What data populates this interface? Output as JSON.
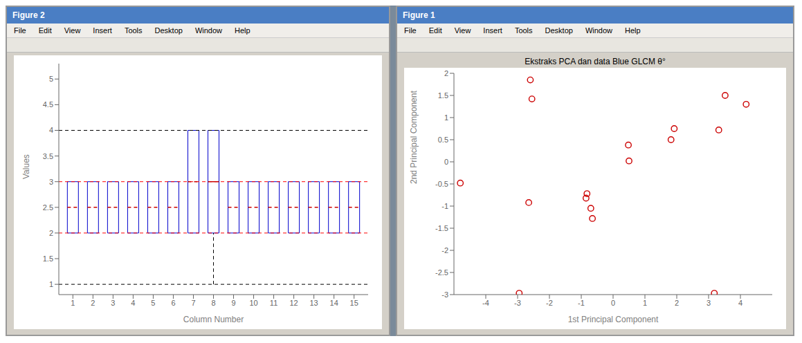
{
  "chart_data": [
    {
      "type": "box",
      "annotations": [
        "Figure 2",
        "File",
        "Edit",
        "View",
        "Insert",
        "Tools",
        "Desktop",
        "Window",
        "Help"
      ],
      "xlabel": "Column Number",
      "ylabel": "Values",
      "xlim": [
        0.3,
        15.7
      ],
      "xticks": [
        1,
        2,
        3,
        4,
        5,
        6,
        7,
        8,
        9,
        10,
        11,
        12,
        13,
        14,
        15
      ],
      "ylim": [
        0.8,
        5.3
      ],
      "yticks": [
        1.0,
        1.5,
        2.0,
        2.5,
        3.0,
        3.5,
        4.0,
        4.5,
        5.0
      ],
      "color": "#0000CC",
      "median_color": "#CC0000",
      "boxes": [
        {
          "x": 1,
          "q1": 2.0,
          "q3": 3.0,
          "median": 2.5,
          "whisker_lo": 2.0,
          "whisker_hi": 3.0,
          "line_style": "dashed"
        },
        {
          "x": 2,
          "q1": 2.0,
          "q3": 3.0,
          "median": 2.5,
          "whisker_lo": 2.0,
          "whisker_hi": 3.0,
          "line_style": "dashed"
        },
        {
          "x": 3,
          "q1": 2.0,
          "q3": 3.0,
          "median": 2.5,
          "whisker_lo": 2.0,
          "whisker_hi": 3.0,
          "line_style": "dashed"
        },
        {
          "x": 4,
          "q1": 2.0,
          "q3": 3.0,
          "median": 2.5,
          "whisker_lo": 2.0,
          "whisker_hi": 3.0,
          "line_style": "dashed"
        },
        {
          "x": 5,
          "q1": 2.0,
          "q3": 3.0,
          "median": 2.5,
          "whisker_lo": 2.0,
          "whisker_hi": 3.0,
          "line_style": "dashed"
        },
        {
          "x": 6,
          "q1": 2.0,
          "q3": 3.0,
          "median": 2.5,
          "whisker_lo": 2.0,
          "whisker_hi": 3.0,
          "line_style": "dashed"
        },
        {
          "x": 7,
          "q1": 2.0,
          "q3": 4.0,
          "median": 3.0,
          "whisker_lo": 2.0,
          "whisker_hi": 4.0,
          "line_style": "dashed"
        },
        {
          "x": 8,
          "q1": 2.0,
          "q3": 4.0,
          "median": 3.0,
          "whisker_lo": 1.0,
          "whisker_hi": 4.0,
          "line_style": "solid"
        },
        {
          "x": 9,
          "q1": 2.0,
          "q3": 3.0,
          "median": 2.5,
          "whisker_lo": 2.0,
          "whisker_hi": 3.0,
          "line_style": "dashed"
        },
        {
          "x": 10,
          "q1": 2.0,
          "q3": 3.0,
          "median": 2.5,
          "whisker_lo": 2.0,
          "whisker_hi": 3.0,
          "line_style": "dashed"
        },
        {
          "x": 11,
          "q1": 2.0,
          "q3": 3.0,
          "median": 2.5,
          "whisker_lo": 2.0,
          "whisker_hi": 3.0,
          "line_style": "dashed"
        },
        {
          "x": 12,
          "q1": 2.0,
          "q3": 3.0,
          "median": 2.5,
          "whisker_lo": 2.0,
          "whisker_hi": 3.0,
          "line_style": "dashed"
        },
        {
          "x": 13,
          "q1": 2.0,
          "q3": 3.0,
          "median": 2.5,
          "whisker_lo": 2.0,
          "whisker_hi": 3.0,
          "line_style": "dashed"
        },
        {
          "x": 14,
          "q1": 2.0,
          "q3": 3.0,
          "median": 2.5,
          "whisker_lo": 2.0,
          "whisker_hi": 3.0,
          "line_style": "dashed"
        },
        {
          "x": 15,
          "q1": 2.0,
          "q3": 3.0,
          "median": 2.5,
          "whisker_lo": 2.0,
          "whisker_hi": 3.0,
          "line_style": "dashed"
        }
      ],
      "hlines": [
        {
          "value": 1.0,
          "color": "black",
          "line_style": "dashed"
        },
        {
          "value": 4.0,
          "color": "black",
          "line_style": "dashed"
        },
        {
          "value": 2.0,
          "color": "red",
          "line_style": "dashed"
        },
        {
          "value": 3.0,
          "color": "red",
          "line_style": "dashed"
        }
      ]
    },
    {
      "type": "scatter",
      "title": "Ekstraks PCA dan data Blue GLCM θ°",
      "annotations": [
        "Figure 1",
        "File",
        "Edit",
        "View",
        "Insert",
        "Tools",
        "Desktop",
        "Window",
        "Help"
      ],
      "xlabel": "1st Principal Component",
      "ylabel": "2nd Principal Component",
      "xlim": [
        -5,
        5
      ],
      "ylim": [
        -3,
        2
      ],
      "xticks": [
        -4,
        -3,
        -2,
        -1,
        0,
        1,
        2,
        3,
        4
      ],
      "yticks": [
        -3.0,
        -2.5,
        -2.0,
        -1.5,
        -1.0,
        -0.5,
        0.0,
        0.5,
        1.0,
        1.5,
        2.0
      ],
      "color": "#CC0000",
      "marker": "circle",
      "x": [
        -4.8,
        -2.65,
        -2.55,
        -2.6,
        -0.85,
        -0.7,
        -0.65,
        -0.82,
        0.48,
        0.5,
        1.82,
        1.92,
        3.18,
        3.52,
        4.18,
        3.32,
        -2.95
      ],
      "values": [
        -0.48,
        -0.92,
        1.42,
        1.85,
        -0.82,
        -1.05,
        -1.28,
        -0.72,
        0.38,
        0.02,
        0.5,
        0.75,
        -2.97,
        1.5,
        1.3,
        0.72,
        -2.97
      ]
    }
  ]
}
